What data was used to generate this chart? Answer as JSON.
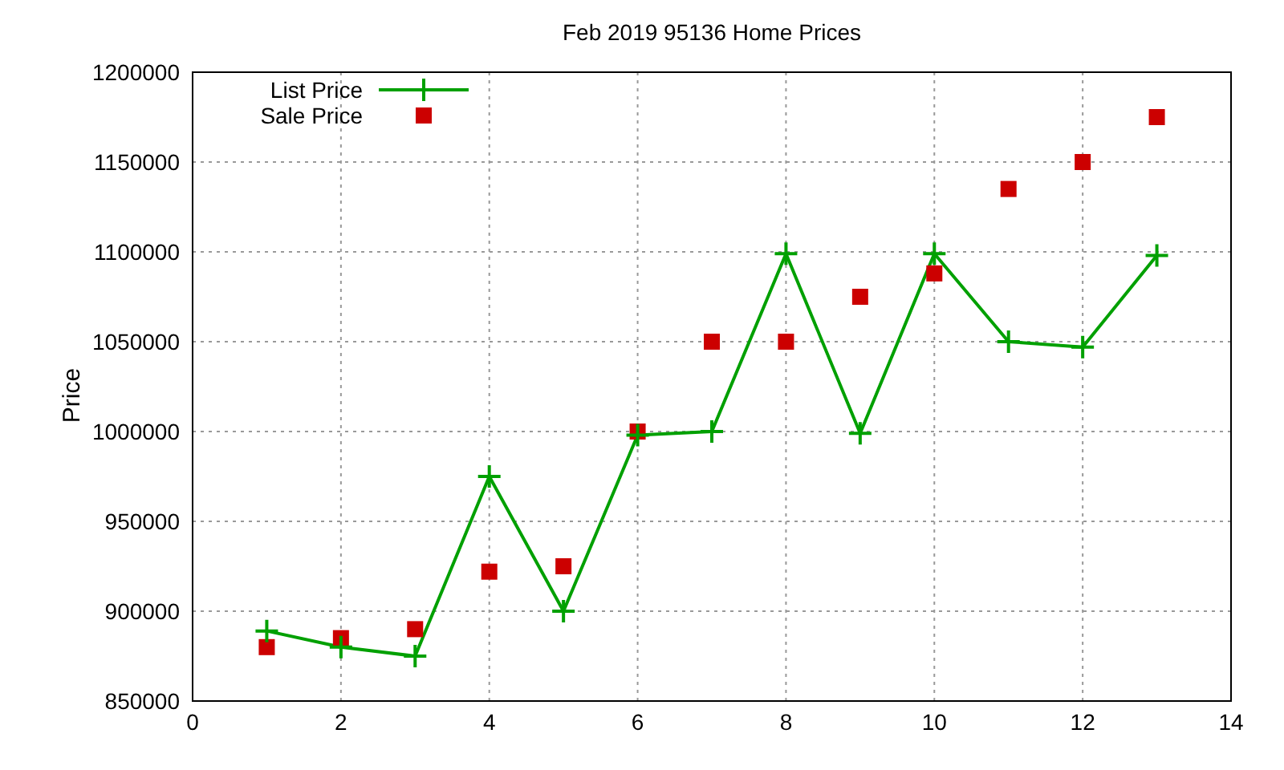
{
  "chart_data": {
    "type": "line",
    "title": "Feb 2019 95136 Home Prices",
    "ylabel": "Price",
    "x": [
      1,
      2,
      3,
      4,
      5,
      6,
      7,
      8,
      9,
      10,
      11,
      12,
      13
    ],
    "series": [
      {
        "name": "List Price",
        "type": "line",
        "color": "#00a000",
        "marker": "cross",
        "values": [
          889000,
          880000,
          875000,
          975000,
          900000,
          998000,
          1000000,
          1099000,
          999000,
          1099000,
          1050000,
          1047000,
          1098000
        ]
      },
      {
        "name": "Sale Price",
        "type": "scatter",
        "color": "#cc0000",
        "marker": "square",
        "values": [
          880000,
          885000,
          890000,
          922000,
          925000,
          1000000,
          1050000,
          1050000,
          1075000,
          1088000,
          1135000,
          1150000,
          1175000
        ]
      }
    ],
    "xlim": [
      0,
      14
    ],
    "xticks": [
      0,
      2,
      4,
      6,
      8,
      10,
      12,
      14
    ],
    "ylim": [
      850000,
      1200000
    ],
    "yticks": [
      850000,
      900000,
      950000,
      1000000,
      1050000,
      1100000,
      1150000,
      1200000
    ],
    "grid": true,
    "legend": "top left"
  }
}
